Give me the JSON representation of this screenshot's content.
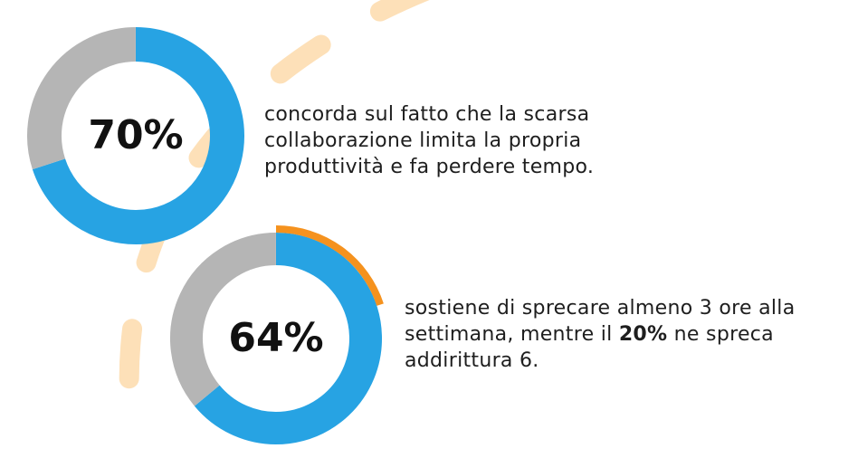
{
  "chart_data": [
    {
      "type": "pie",
      "variant": "donut",
      "label": "70%",
      "values": [
        70,
        30
      ],
      "colors": [
        "#27a3e3",
        "#b5b5b5"
      ],
      "caption": "concorda sul fatto che la scarsa collaborazione limita la propria produttività e fa perdere tempo."
    },
    {
      "type": "pie",
      "variant": "donut",
      "label": "64%",
      "values": [
        64,
        36
      ],
      "highlight_value": 20,
      "colors": [
        "#27a3e3",
        "#b5b5b5",
        "#f5921e"
      ],
      "caption": {
        "before": "sostiene di sprecare almeno 3 ore alla settimana, mentre il ",
        "bold": "20%",
        "after": " ne spreca addirittura 6."
      }
    }
  ],
  "decor": {
    "dash_color": "#fde0b8"
  }
}
